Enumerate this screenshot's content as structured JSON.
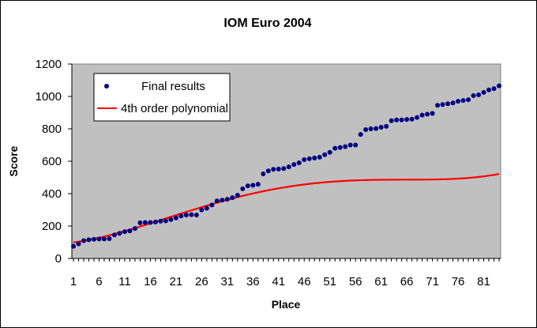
{
  "chart_data": {
    "type": "scatter",
    "title": "IOM Euro 2004",
    "xlabel": "Place",
    "ylabel": "Score",
    "xlim": [
      1,
      84
    ],
    "ylim": [
      0,
      1200
    ],
    "x_ticks": [
      1,
      6,
      11,
      16,
      21,
      26,
      31,
      36,
      41,
      46,
      51,
      56,
      61,
      66,
      71,
      76,
      81
    ],
    "y_ticks": [
      0,
      200,
      400,
      600,
      800,
      1000,
      1200
    ],
    "grid": false,
    "background": "#c0c0c0",
    "legend_position": "top-left",
    "series": [
      {
        "name": "Final results",
        "kind": "points",
        "color": "#000080",
        "x": [
          1,
          2,
          3,
          4,
          5,
          6,
          7,
          8,
          9,
          10,
          11,
          12,
          13,
          14,
          15,
          16,
          17,
          18,
          19,
          20,
          21,
          22,
          23,
          24,
          25,
          26,
          27,
          28,
          29,
          30,
          31,
          32,
          33,
          34,
          35,
          36,
          37,
          38,
          39,
          40,
          41,
          42,
          43,
          44,
          45,
          46,
          47,
          48,
          49,
          50,
          51,
          52,
          53,
          54,
          55,
          56,
          57,
          58,
          59,
          60,
          61,
          62,
          63,
          64,
          65,
          66,
          67,
          68,
          69,
          70,
          71,
          72,
          73,
          74,
          75,
          76,
          77,
          78,
          79,
          80,
          81,
          82,
          83,
          84
        ],
        "y": [
          75,
          90,
          110,
          115,
          118,
          120,
          120,
          122,
          145,
          155,
          165,
          170,
          185,
          220,
          222,
          222,
          225,
          230,
          232,
          240,
          250,
          262,
          268,
          270,
          268,
          300,
          310,
          330,
          355,
          360,
          365,
          375,
          390,
          430,
          448,
          452,
          458,
          522,
          540,
          550,
          552,
          555,
          565,
          580,
          590,
          610,
          615,
          620,
          625,
          640,
          655,
          680,
          685,
          690,
          700,
          700,
          765,
          795,
          800,
          802,
          810,
          815,
          850,
          855,
          855,
          858,
          860,
          870,
          885,
          890,
          895,
          945,
          950,
          955,
          960,
          970,
          975,
          980,
          1005,
          1010,
          1025,
          1040,
          1048,
          1065
        ]
      },
      {
        "name": "4th order polynomial",
        "kind": "line",
        "color": "#ff0000",
        "coefficients": [
          95,
          3.5,
          0.38,
          -0.0085,
          5e-05
        ]
      }
    ]
  }
}
